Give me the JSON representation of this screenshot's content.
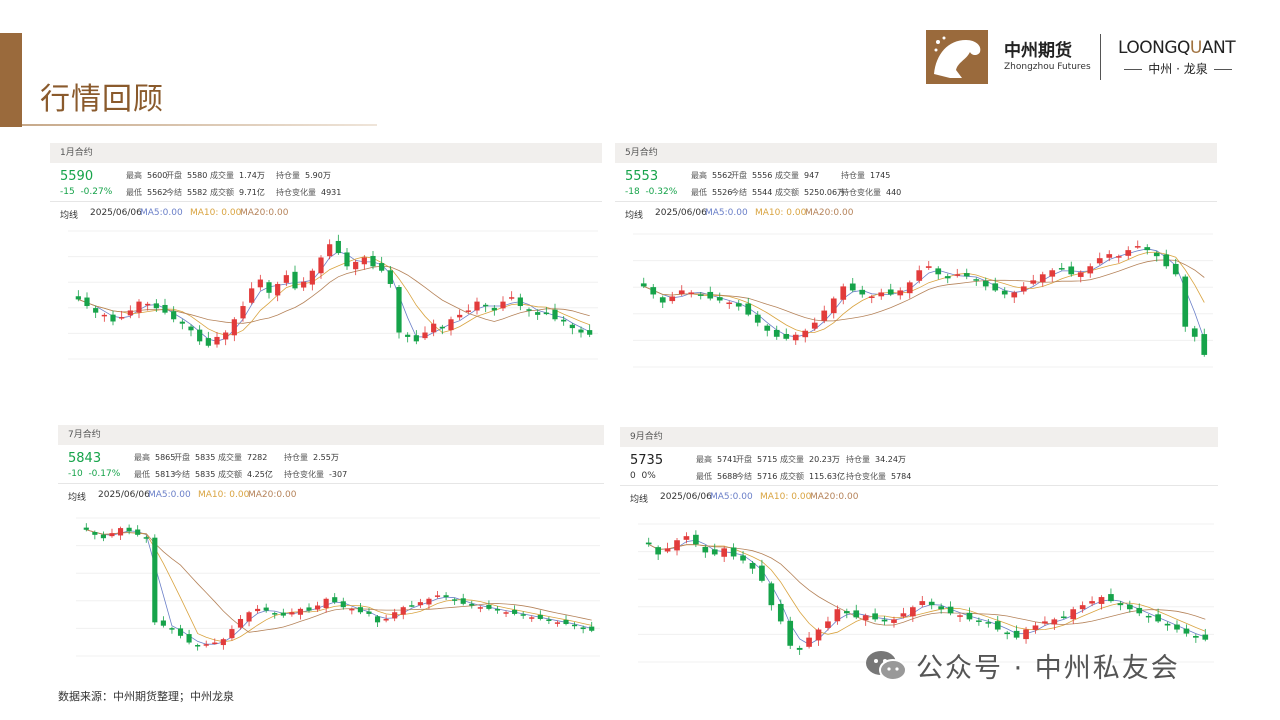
{
  "page": {
    "title": "行情回顾",
    "source": "数据来源：中州期货整理；中州龙泉"
  },
  "logo": {
    "cn": "中州期货",
    "en": "Zhongzhou Futures",
    "lq_pre": "LOONGQ",
    "lq_mid": "U",
    "lq_post": "ANT",
    "lq_cn": "中州 · 龙泉"
  },
  "watermark": {
    "text": "公众号 · 中州私友会"
  },
  "colors": {
    "up": "#e23b3b",
    "down": "#16a34a",
    "ma5": "#6a7fc8",
    "ma10": "#d9a441",
    "ma20": "#b5835a",
    "accent": "#9a6a3c"
  },
  "panels": [
    {
      "contract": "1月合约",
      "price": "5590",
      "change": "-15",
      "pct": "-0.27%",
      "fields": [
        {
          "k": "最高",
          "v": "5600"
        },
        {
          "k": "开盘",
          "v": "5580"
        },
        {
          "k": "成交量",
          "v": "1.74万"
        },
        {
          "k": "持仓量",
          "v": "5.90万"
        },
        {
          "k": "最低",
          "v": "5562"
        },
        {
          "k": "今结",
          "v": "5582"
        },
        {
          "k": "成交额",
          "v": "9.71亿"
        },
        {
          "k": "持仓变化量",
          "v": "4931"
        }
      ],
      "ma": {
        "label": "均线",
        "date": "2025/06/06",
        "ma5": "MA5:0.00",
        "ma10": "MA10: 0.00",
        "ma20": "MA20:0.00"
      },
      "path": [
        5750,
        5720,
        5690,
        5680,
        5650,
        5670,
        5700,
        5740,
        5730,
        5710,
        5690,
        5660,
        5640,
        5610,
        5560,
        5540,
        5580,
        5600,
        5660,
        5720,
        5800,
        5840,
        5780,
        5820,
        5860,
        5800,
        5830,
        5880,
        5940,
        6000,
        5960,
        5900,
        5920,
        5940,
        5900,
        5880,
        5820,
        5600,
        5580,
        5560,
        5600,
        5640,
        5620,
        5660,
        5680,
        5700,
        5740,
        5720,
        5700,
        5740,
        5760,
        5720,
        5700,
        5680,
        5690,
        5660,
        5650,
        5620,
        5600,
        5590
      ]
    },
    {
      "contract": "5月合约",
      "price": "5553",
      "change": "-18",
      "pct": "-0.32%",
      "fields": [
        {
          "k": "最高",
          "v": "5562"
        },
        {
          "k": "开盘",
          "v": "5556"
        },
        {
          "k": "成交量",
          "v": "947"
        },
        {
          "k": "持仓量",
          "v": "1745"
        },
        {
          "k": "最低",
          "v": "5526"
        },
        {
          "k": "今结",
          "v": "5544"
        },
        {
          "k": "成交额",
          "v": "5250.06万"
        },
        {
          "k": "持仓变化量",
          "v": "440"
        }
      ],
      "ma": {
        "label": "均线",
        "date": "2025/06/06",
        "ma5": "MA5:0.00",
        "ma10": "MA10: 0.00",
        "ma20": "MA20:0.00"
      },
      "path": [
        5900,
        5860,
        5820,
        5850,
        5880,
        5870,
        5860,
        5840,
        5830,
        5820,
        5800,
        5760,
        5720,
        5680,
        5650,
        5640,
        5660,
        5680,
        5720,
        5780,
        5840,
        5900,
        5880,
        5860,
        5850,
        5870,
        5860,
        5880,
        5920,
        5980,
        6000,
        5960,
        5940,
        5960,
        5950,
        5930,
        5900,
        5880,
        5860,
        5870,
        5900,
        5930,
        5960,
        5980,
        5990,
        5960,
        5970,
        6000,
        6040,
        6060,
        6050,
        6080,
        6100,
        6080,
        6050,
        6000,
        5960,
        5700,
        5650,
        5560
      ]
    },
    {
      "contract": "7月合约",
      "price": "5843",
      "change": "-10",
      "pct": "-0.17%",
      "fields": [
        {
          "k": "最高",
          "v": "5865"
        },
        {
          "k": "开盘",
          "v": "5835"
        },
        {
          "k": "成交量",
          "v": "7282"
        },
        {
          "k": "持仓量",
          "v": "2.55万"
        },
        {
          "k": "最低",
          "v": "5813"
        },
        {
          "k": "今结",
          "v": "5835"
        },
        {
          "k": "成交额",
          "v": "4.25亿"
        },
        {
          "k": "持仓变化量",
          "v": "-307"
        }
      ],
      "ma": {
        "label": "均线",
        "date": "2025/06/06",
        "ma5": "MA5:0.00",
        "ma10": "MA10: 0.00",
        "ma20": "MA20:0.00"
      },
      "path": [
        6450,
        6420,
        6400,
        6430,
        6460,
        6440,
        6420,
        6400,
        5900,
        5880,
        5860,
        5820,
        5780,
        5760,
        5770,
        5780,
        5800,
        5860,
        5920,
        5960,
        5980,
        5970,
        5950,
        5940,
        5960,
        5980,
        5970,
        6000,
        6040,
        6020,
        5990,
        5980,
        5960,
        5950,
        5900,
        5920,
        5960,
        5990,
        6000,
        6020,
        6040,
        6060,
        6050,
        6030,
        6010,
        6000,
        5990,
        5980,
        5970,
        5960,
        5950,
        5940,
        5930,
        5920,
        5910,
        5900,
        5890,
        5880,
        5860,
        5850
      ]
    },
    {
      "contract": "9月合约",
      "price": "5735",
      "change": "0",
      "pct": "0%",
      "fields": [
        {
          "k": "最高",
          "v": "5741"
        },
        {
          "k": "开盘",
          "v": "5715"
        },
        {
          "k": "成交量",
          "v": "20.23万"
        },
        {
          "k": "持仓量",
          "v": "34.24万"
        },
        {
          "k": "最低",
          "v": "5688"
        },
        {
          "k": "今结",
          "v": "5716"
        },
        {
          "k": "成交额",
          "v": "115.63亿"
        },
        {
          "k": "持仓变化量",
          "v": "5784"
        }
      ],
      "ma": {
        "label": "均线",
        "date": "2025/06/06",
        "ma5": "MA5:0.00",
        "ma10": "MA10: 0.00",
        "ma20": "MA20:0.00"
      },
      "path": [
        6200,
        6150,
        6180,
        6220,
        6240,
        6200,
        6160,
        6150,
        6180,
        6140,
        6120,
        6080,
        6020,
        5900,
        5820,
        5700,
        5680,
        5740,
        5780,
        5820,
        5880,
        5860,
        5840,
        5850,
        5830,
        5820,
        5830,
        5860,
        5890,
        5920,
        5900,
        5880,
        5860,
        5850,
        5830,
        5820,
        5810,
        5780,
        5760,
        5740,
        5780,
        5800,
        5820,
        5830,
        5840,
        5880,
        5900,
        5920,
        5940,
        5920,
        5900,
        5880,
        5860,
        5840,
        5820,
        5800,
        5780,
        5760,
        5740,
        5730
      ]
    }
  ]
}
